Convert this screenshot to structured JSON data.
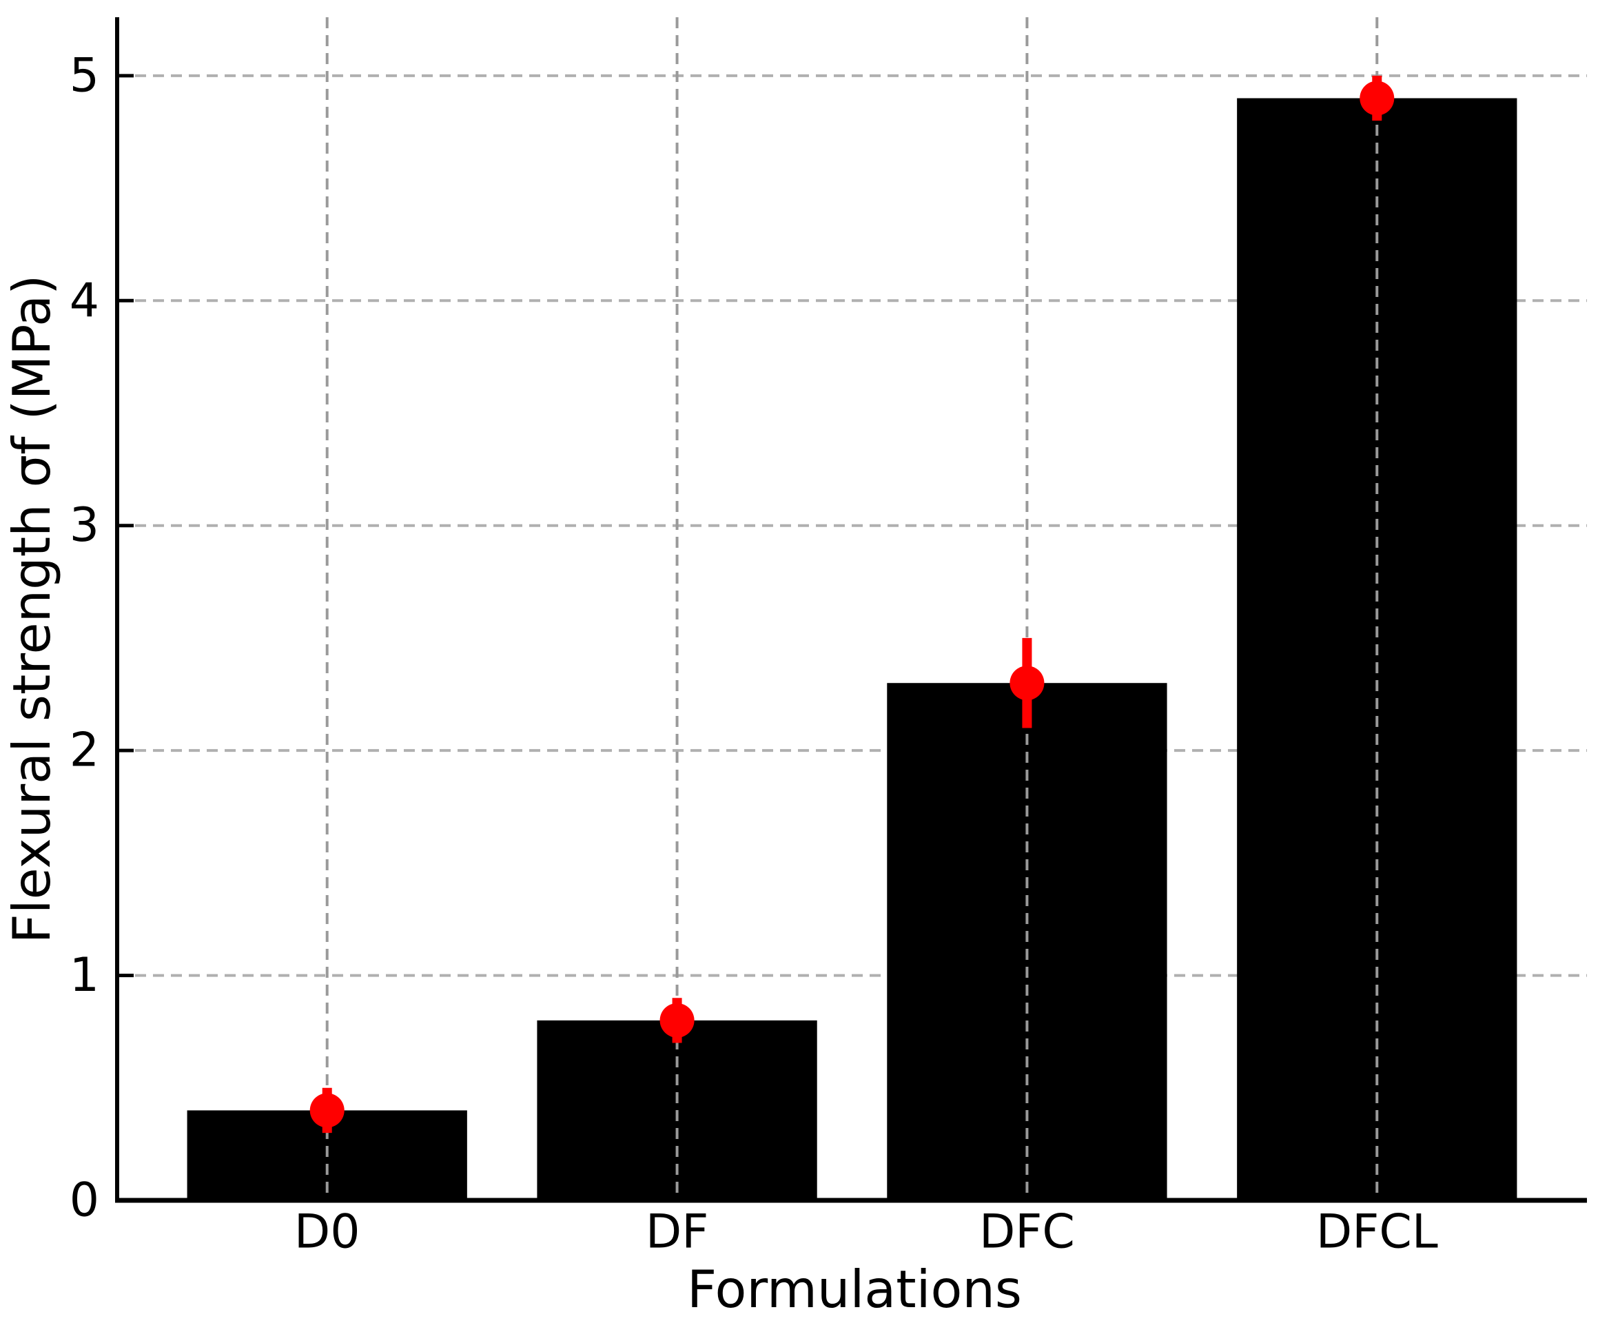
{
  "chart_data": {
    "type": "bar",
    "title": "",
    "xlabel": "Formulations",
    "ylabel": "Flexural strength σf (MPa)",
    "categories": [
      "D0",
      "DF",
      "DFC",
      "DFCL"
    ],
    "values": [
      0.4,
      0.8,
      2.3,
      4.9
    ],
    "errors": [
      0.1,
      0.1,
      0.2,
      0.1
    ],
    "yticks": [
      0,
      1,
      2,
      3,
      4,
      5
    ],
    "ylim": [
      0,
      5.26
    ],
    "xlim": [
      -0.6,
      3.6
    ],
    "bar_width_fraction": 0.8,
    "grid": {
      "horizontal": true,
      "vertical": true,
      "style": "dashed"
    },
    "legend": "none",
    "colors": {
      "bar": "#000000",
      "error": "#ff0000",
      "grid_horizontal": "#b0b0b0",
      "grid_vertical": "#9a9a9a",
      "axis": "#000000",
      "background": "#ffffff"
    }
  }
}
